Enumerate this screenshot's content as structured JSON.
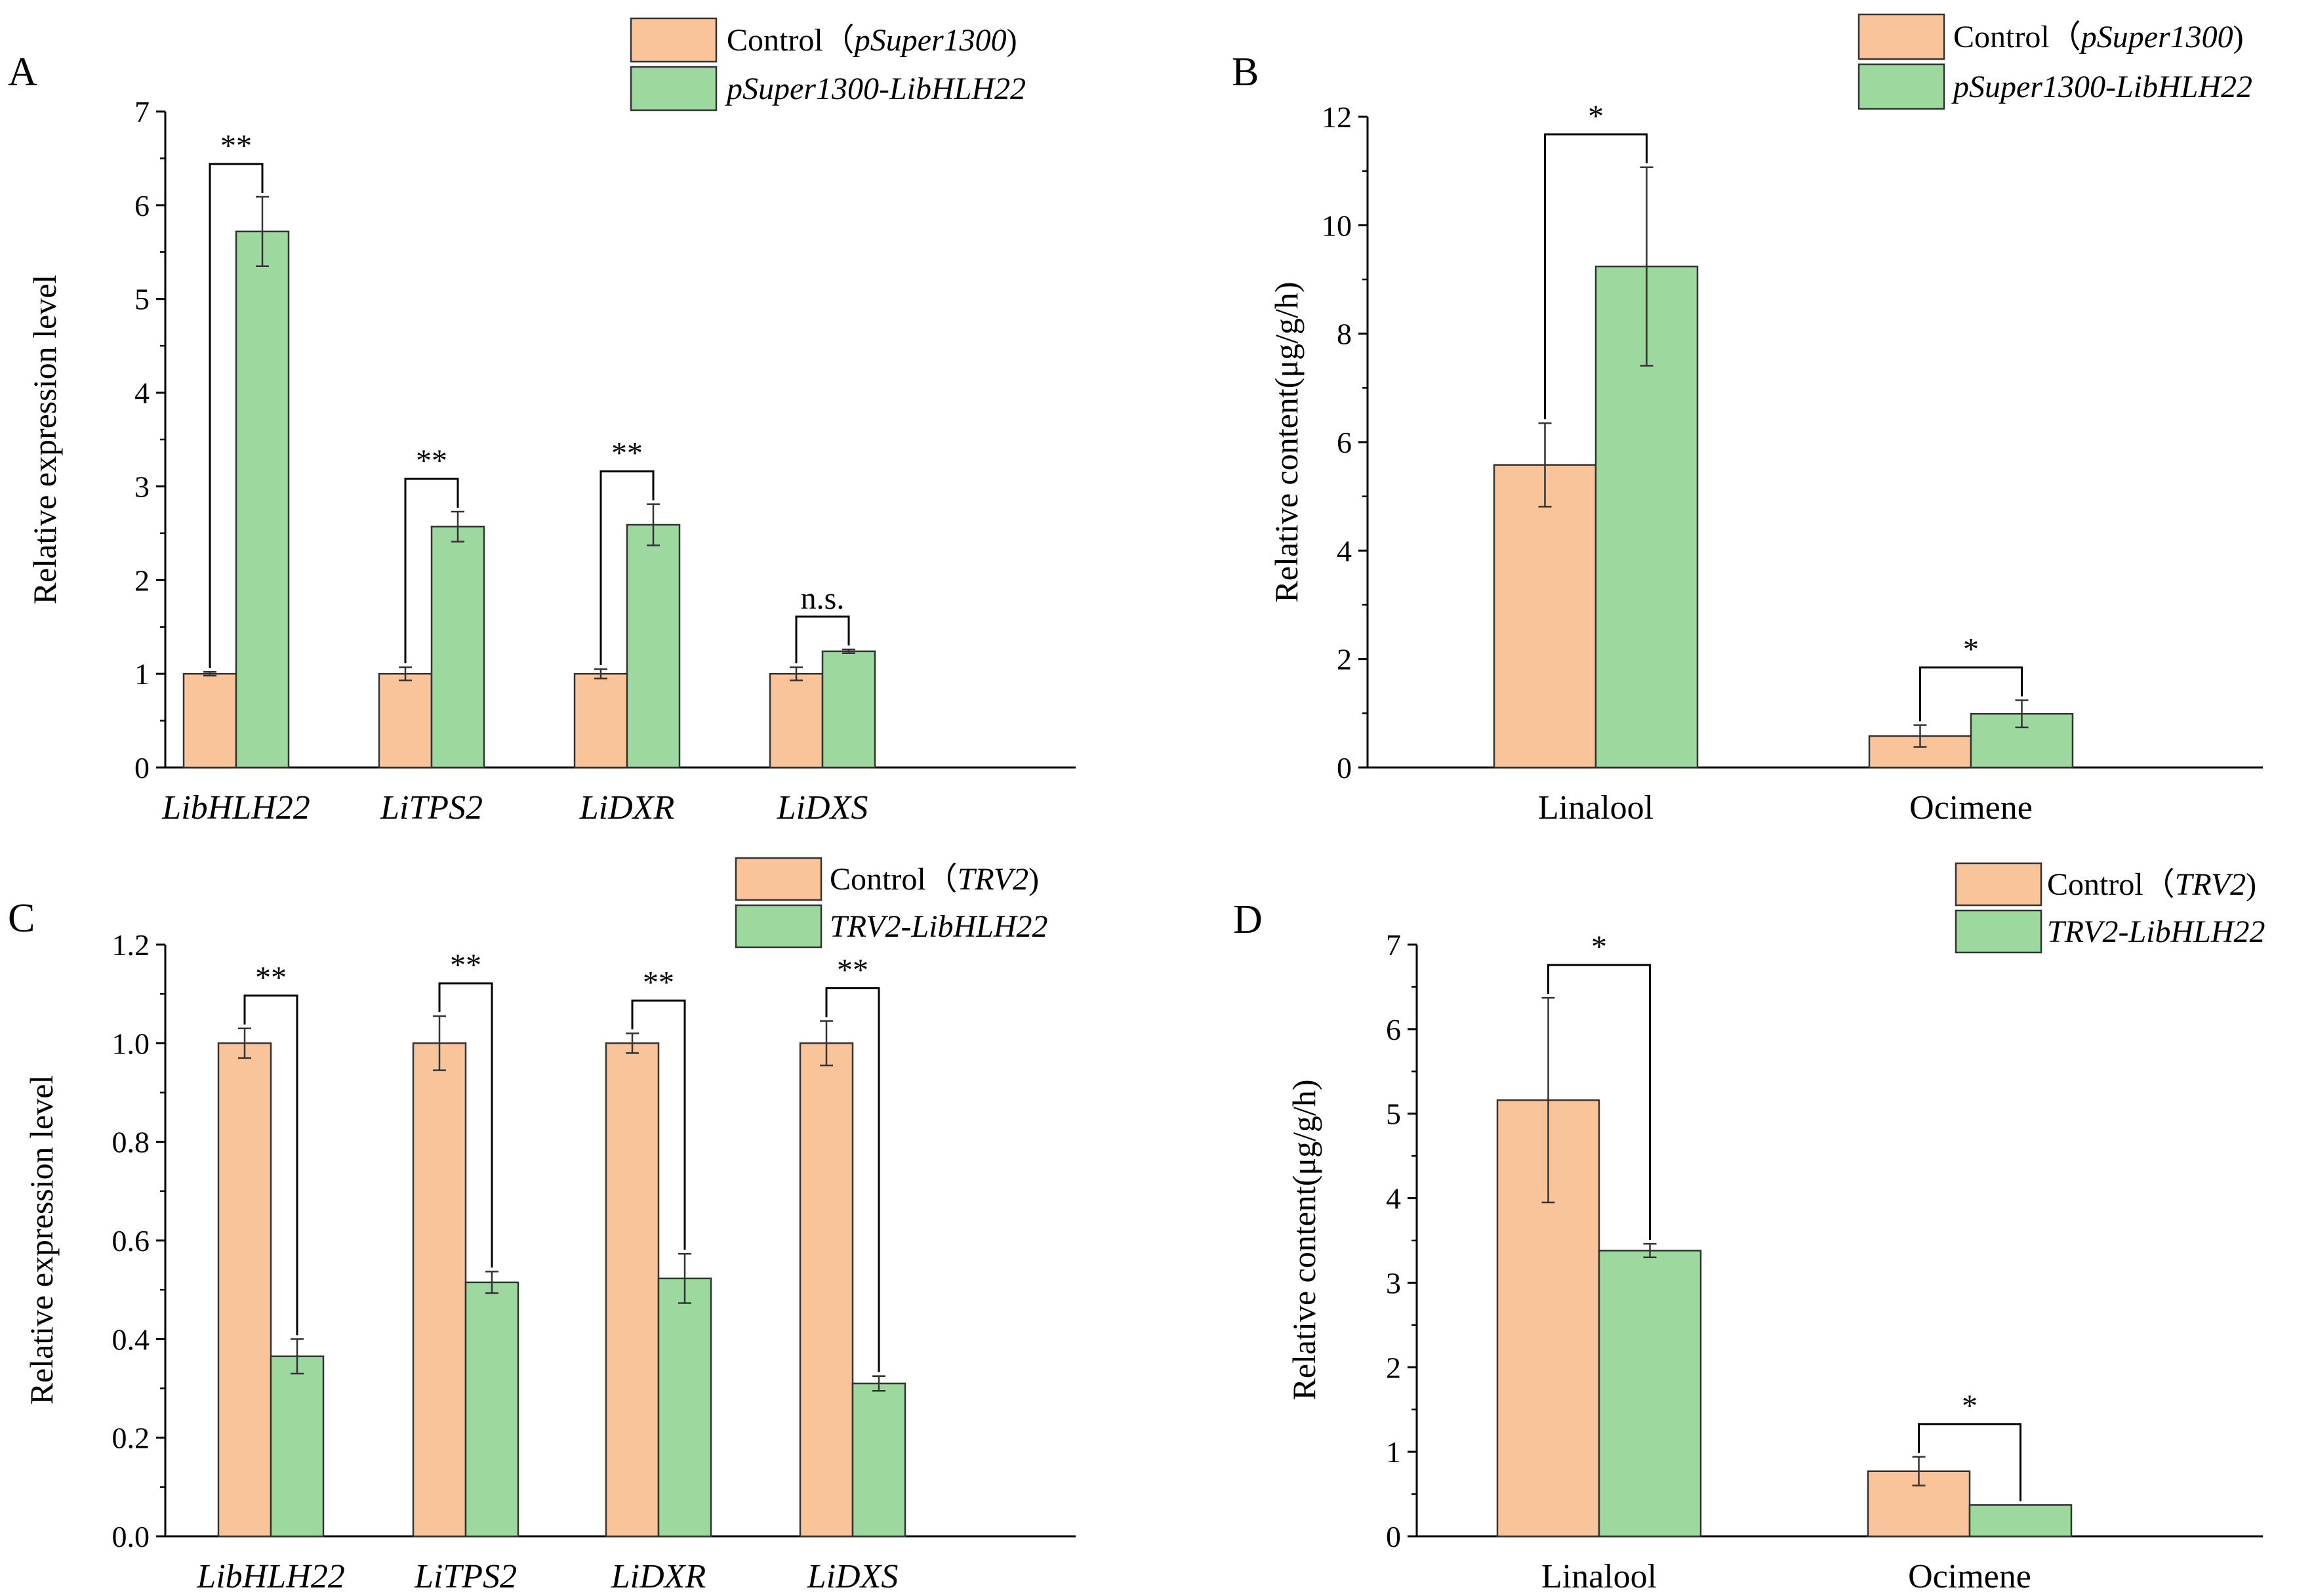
{
  "colors": {
    "control_fill": "#f9c49a",
    "treatment_fill": "#9dd89e",
    "stroke": "#333333"
  },
  "chart_data": [
    {
      "panel": "A",
      "type": "bar",
      "ylabel": "Relative expression level",
      "ylim": [
        0,
        7
      ],
      "yticks": [
        0,
        1,
        2,
        3,
        4,
        5,
        6,
        7
      ],
      "ytick_labels": [
        "0",
        "1",
        "2",
        "3",
        "4",
        "5",
        "6",
        "7"
      ],
      "categories": [
        "LibHLH22",
        "LiTPS2",
        "LiDXR",
        "LiDXS"
      ],
      "categories_italic": true,
      "legend": {
        "position": "top-right",
        "control_prefix": "Control（",
        "control_italic": "pSuper1300",
        "control_suffix": ")",
        "treatment_italic": "pSuper1300-LibHLH22"
      },
      "series": [
        {
          "name": "Control (pSuper1300)",
          "values": [
            1.0,
            1.0,
            1.0,
            1.0
          ],
          "errors": [
            0.02,
            0.07,
            0.05,
            0.07
          ]
        },
        {
          "name": "pSuper1300-LibHLH22",
          "values": [
            5.72,
            2.57,
            2.59,
            1.24
          ],
          "errors": [
            0.37,
            0.16,
            0.22,
            0.02
          ]
        }
      ],
      "significance": [
        "**",
        "**",
        "**",
        "n.s."
      ]
    },
    {
      "panel": "B",
      "type": "bar",
      "ylabel": "Relative content(μg/g/h)",
      "ylim": [
        0,
        12
      ],
      "yticks": [
        0,
        2,
        4,
        6,
        8,
        10,
        12
      ],
      "ytick_labels": [
        "0",
        "2",
        "4",
        "6",
        "8",
        "10",
        "12"
      ],
      "categories": [
        "Linalool",
        "Ocimene"
      ],
      "categories_italic": false,
      "legend": {
        "position": "top-right",
        "control_prefix": "Control（",
        "control_italic": "pSuper1300",
        "control_suffix": ")",
        "treatment_italic": "pSuper1300-LibHLH22"
      },
      "series": [
        {
          "name": "Control (pSuper1300)",
          "values": [
            5.58,
            0.58
          ],
          "errors": [
            0.77,
            0.2
          ]
        },
        {
          "name": "pSuper1300-LibHLH22",
          "values": [
            9.24,
            0.99
          ],
          "errors": [
            1.83,
            0.25
          ]
        }
      ],
      "significance": [
        "*",
        "*"
      ]
    },
    {
      "panel": "C",
      "type": "bar",
      "ylabel": "Relative expression level",
      "ylim": [
        0,
        1.2
      ],
      "yticks": [
        0,
        0.2,
        0.4,
        0.6,
        0.8,
        1.0,
        1.2
      ],
      "ytick_labels": [
        "0.0",
        "0.2",
        "0.4",
        "0.6",
        "0.8",
        "1.0",
        "1.2"
      ],
      "categories": [
        "LibHLH22",
        "LiTPS2",
        "LiDXR",
        "LiDXS"
      ],
      "categories_italic": true,
      "legend": {
        "position": "top-right",
        "control_prefix": "Control（",
        "control_italic": "TRV2",
        "control_suffix": ")",
        "treatment_italic": "TRV2-LibHLH22"
      },
      "series": [
        {
          "name": "Control (TRV2)",
          "values": [
            1.0,
            1.0,
            1.0,
            1.0
          ],
          "errors": [
            0.03,
            0.055,
            0.02,
            0.045
          ]
        },
        {
          "name": "TRV2-LibHLH22",
          "values": [
            0.365,
            0.515,
            0.523,
            0.31
          ],
          "errors": [
            0.035,
            0.022,
            0.05,
            0.015
          ]
        }
      ],
      "significance": [
        "**",
        "**",
        "**",
        "**"
      ]
    },
    {
      "panel": "D",
      "type": "bar",
      "ylabel": "Relative content(μg/g/h)",
      "ylim": [
        0,
        7
      ],
      "yticks": [
        0,
        1,
        2,
        3,
        4,
        5,
        6,
        7
      ],
      "ytick_labels": [
        "0",
        "1",
        "2",
        "3",
        "4",
        "5",
        "6",
        "7"
      ],
      "categories": [
        "Linalool",
        "Ocimene"
      ],
      "categories_italic": false,
      "legend": {
        "position": "top-right",
        "control_prefix": "Control（",
        "control_italic": "TRV2",
        "control_suffix": ")",
        "treatment_italic": "TRV2-LibHLH22"
      },
      "series": [
        {
          "name": "Control (TRV2)",
          "values": [
            5.16,
            0.77
          ],
          "errors": [
            1.21,
            0.17
          ]
        },
        {
          "name": "TRV2-LibHLH22",
          "values": [
            3.38,
            0.37
          ],
          "errors": [
            0.08,
            0.0
          ]
        }
      ],
      "significance": [
        "*",
        "*"
      ]
    }
  ]
}
